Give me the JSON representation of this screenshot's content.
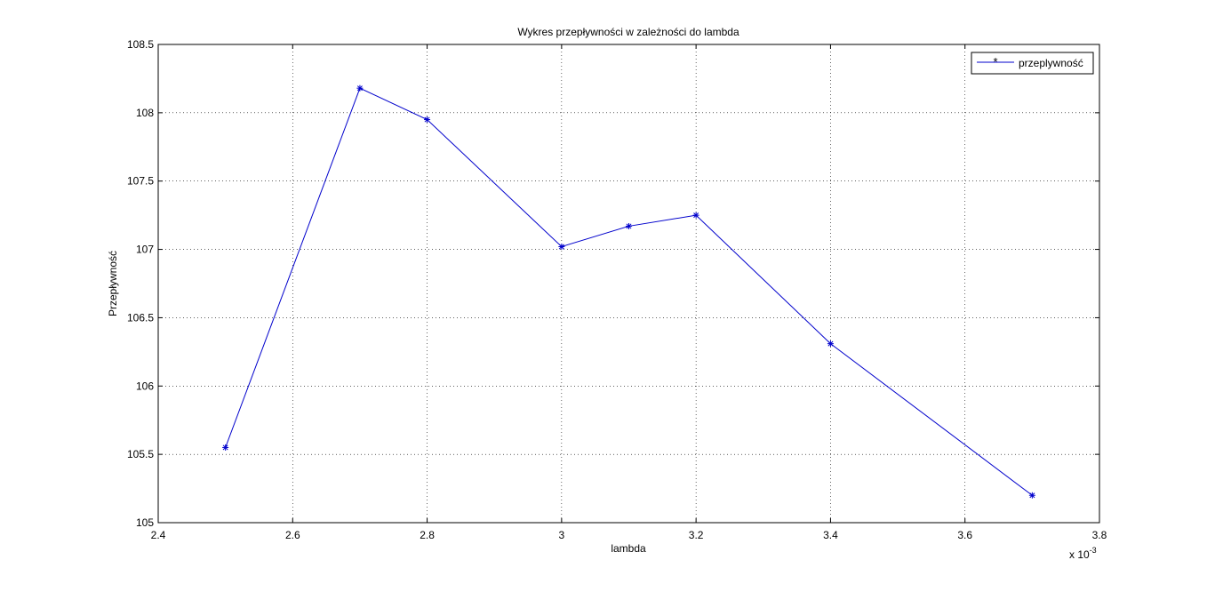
{
  "chart_data": {
    "type": "line",
    "title": "Wykres przepływności w zależności do lambda",
    "xlabel": "lambda",
    "ylabel": "Przepływność",
    "x_exponent_label": "x 10",
    "x_exponent_power": "-3",
    "xlim": [
      2.4,
      3.8
    ],
    "ylim": [
      105,
      108.5
    ],
    "x_scale_factor": 0.001,
    "grid": true,
    "legend_position": "top-right",
    "x_ticks": [
      "2.4",
      "2.6",
      "2.8",
      "3",
      "3.2",
      "3.4",
      "3.6",
      "3.8"
    ],
    "y_ticks": [
      "105",
      "105.5",
      "106",
      "106.5",
      "107",
      "107.5",
      "108",
      "108.5"
    ],
    "series": [
      {
        "name": "przeplywność",
        "color": "#0000cc",
        "marker": "*",
        "x": [
          2.5,
          2.7,
          2.8,
          3.0,
          3.1,
          3.2,
          3.4,
          3.7
        ],
        "y": [
          105.55,
          108.18,
          107.95,
          107.02,
          107.17,
          107.25,
          106.31,
          105.2
        ]
      }
    ]
  }
}
